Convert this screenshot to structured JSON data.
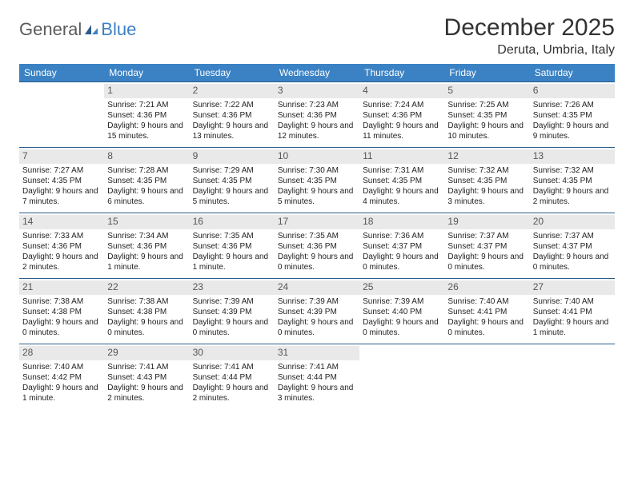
{
  "brand": {
    "part1": "General",
    "part2": "Blue"
  },
  "title": "December 2025",
  "location": "Deruta, Umbria, Italy",
  "colors": {
    "header_bg": "#3b82c4",
    "header_text": "#ffffff",
    "row_border": "#2b5c8a",
    "daynum_bg": "#e9e9e9",
    "logo_grey": "#5a5a5a",
    "logo_blue": "#3b7fc4"
  },
  "weekdays": [
    "Sunday",
    "Monday",
    "Tuesday",
    "Wednesday",
    "Thursday",
    "Friday",
    "Saturday"
  ],
  "first_weekday_index": 1,
  "days": [
    {
      "n": 1,
      "sunrise": "7:21 AM",
      "sunset": "4:36 PM",
      "daylight": "9 hours and 15 minutes."
    },
    {
      "n": 2,
      "sunrise": "7:22 AM",
      "sunset": "4:36 PM",
      "daylight": "9 hours and 13 minutes."
    },
    {
      "n": 3,
      "sunrise": "7:23 AM",
      "sunset": "4:36 PM",
      "daylight": "9 hours and 12 minutes."
    },
    {
      "n": 4,
      "sunrise": "7:24 AM",
      "sunset": "4:36 PM",
      "daylight": "9 hours and 11 minutes."
    },
    {
      "n": 5,
      "sunrise": "7:25 AM",
      "sunset": "4:35 PM",
      "daylight": "9 hours and 10 minutes."
    },
    {
      "n": 6,
      "sunrise": "7:26 AM",
      "sunset": "4:35 PM",
      "daylight": "9 hours and 9 minutes."
    },
    {
      "n": 7,
      "sunrise": "7:27 AM",
      "sunset": "4:35 PM",
      "daylight": "9 hours and 7 minutes."
    },
    {
      "n": 8,
      "sunrise": "7:28 AM",
      "sunset": "4:35 PM",
      "daylight": "9 hours and 6 minutes."
    },
    {
      "n": 9,
      "sunrise": "7:29 AM",
      "sunset": "4:35 PM",
      "daylight": "9 hours and 5 minutes."
    },
    {
      "n": 10,
      "sunrise": "7:30 AM",
      "sunset": "4:35 PM",
      "daylight": "9 hours and 5 minutes."
    },
    {
      "n": 11,
      "sunrise": "7:31 AM",
      "sunset": "4:35 PM",
      "daylight": "9 hours and 4 minutes."
    },
    {
      "n": 12,
      "sunrise": "7:32 AM",
      "sunset": "4:35 PM",
      "daylight": "9 hours and 3 minutes."
    },
    {
      "n": 13,
      "sunrise": "7:32 AM",
      "sunset": "4:35 PM",
      "daylight": "9 hours and 2 minutes."
    },
    {
      "n": 14,
      "sunrise": "7:33 AM",
      "sunset": "4:36 PM",
      "daylight": "9 hours and 2 minutes."
    },
    {
      "n": 15,
      "sunrise": "7:34 AM",
      "sunset": "4:36 PM",
      "daylight": "9 hours and 1 minute."
    },
    {
      "n": 16,
      "sunrise": "7:35 AM",
      "sunset": "4:36 PM",
      "daylight": "9 hours and 1 minute."
    },
    {
      "n": 17,
      "sunrise": "7:35 AM",
      "sunset": "4:36 PM",
      "daylight": "9 hours and 0 minutes."
    },
    {
      "n": 18,
      "sunrise": "7:36 AM",
      "sunset": "4:37 PM",
      "daylight": "9 hours and 0 minutes."
    },
    {
      "n": 19,
      "sunrise": "7:37 AM",
      "sunset": "4:37 PM",
      "daylight": "9 hours and 0 minutes."
    },
    {
      "n": 20,
      "sunrise": "7:37 AM",
      "sunset": "4:37 PM",
      "daylight": "9 hours and 0 minutes."
    },
    {
      "n": 21,
      "sunrise": "7:38 AM",
      "sunset": "4:38 PM",
      "daylight": "9 hours and 0 minutes."
    },
    {
      "n": 22,
      "sunrise": "7:38 AM",
      "sunset": "4:38 PM",
      "daylight": "9 hours and 0 minutes."
    },
    {
      "n": 23,
      "sunrise": "7:39 AM",
      "sunset": "4:39 PM",
      "daylight": "9 hours and 0 minutes."
    },
    {
      "n": 24,
      "sunrise": "7:39 AM",
      "sunset": "4:39 PM",
      "daylight": "9 hours and 0 minutes."
    },
    {
      "n": 25,
      "sunrise": "7:39 AM",
      "sunset": "4:40 PM",
      "daylight": "9 hours and 0 minutes."
    },
    {
      "n": 26,
      "sunrise": "7:40 AM",
      "sunset": "4:41 PM",
      "daylight": "9 hours and 0 minutes."
    },
    {
      "n": 27,
      "sunrise": "7:40 AM",
      "sunset": "4:41 PM",
      "daylight": "9 hours and 1 minute."
    },
    {
      "n": 28,
      "sunrise": "7:40 AM",
      "sunset": "4:42 PM",
      "daylight": "9 hours and 1 minute."
    },
    {
      "n": 29,
      "sunrise": "7:41 AM",
      "sunset": "4:43 PM",
      "daylight": "9 hours and 2 minutes."
    },
    {
      "n": 30,
      "sunrise": "7:41 AM",
      "sunset": "4:44 PM",
      "daylight": "9 hours and 2 minutes."
    },
    {
      "n": 31,
      "sunrise": "7:41 AM",
      "sunset": "4:44 PM",
      "daylight": "9 hours and 3 minutes."
    }
  ],
  "labels": {
    "sunrise_prefix": "Sunrise: ",
    "sunset_prefix": "Sunset: ",
    "daylight_prefix": "Daylight: "
  }
}
